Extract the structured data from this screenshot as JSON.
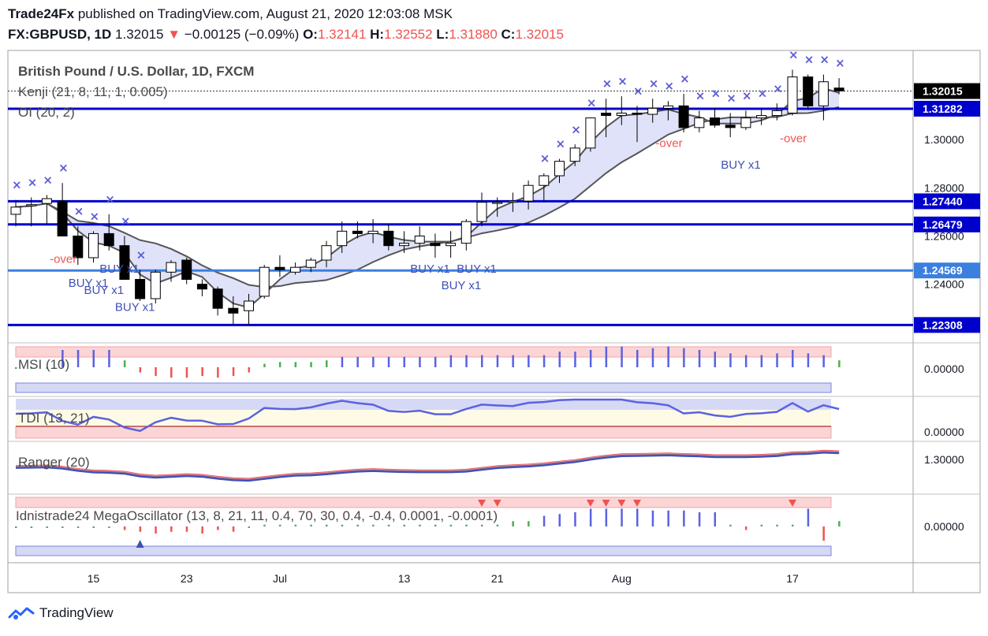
{
  "header": {
    "publisher": "Trade24Fx",
    "published_on": "published on TradingView.com, August 21, 2020 12:03:08 MSK",
    "symbol": "FX:GBPUSD, 1D",
    "last": "1.32015",
    "change": "−0.00125 (−0.09%)",
    "o_label": "O:",
    "o": "1.32141",
    "h_label": "H:",
    "h": "1.32552",
    "l_label": "L:",
    "l": "1.31880",
    "c_label": "C:",
    "c": "1.32015"
  },
  "colors": {
    "up": "#ffffff",
    "down": "#000000",
    "level_line": "#0000cc",
    "level_line_light": "#3b7fdf",
    "buy": "#3f51b5",
    "sell_cross": "#5b5bd6",
    "over": "#ef5350"
  },
  "chart_data": [
    {
      "type": "candlestick",
      "title": "British Pound / U.S. Dollar, 1D, FXCM",
      "indicators": [
        "Kenji (21, 8, 11, 1, 0.005)",
        "OI (20, 2)"
      ],
      "x_tick_labels": [
        "15",
        "23",
        "Jul",
        "13",
        "21",
        "Aug",
        "17"
      ],
      "y_tick_labels": [
        "1.24000",
        "1.26000",
        "1.28000",
        "1.30000"
      ],
      "ylim": [
        1.216,
        1.337
      ],
      "price_levels": [
        {
          "value": 1.32015,
          "label": "1.32015",
          "style": "last"
        },
        {
          "value": 1.31282,
          "label": "1.31282",
          "style": "dark"
        },
        {
          "value": 1.2744,
          "label": "1.27440",
          "style": "dark"
        },
        {
          "value": 1.26479,
          "label": "1.26479",
          "style": "dark"
        },
        {
          "value": 1.24569,
          "label": "1.24569",
          "style": "light"
        },
        {
          "value": 1.22308,
          "label": "1.22308",
          "style": "dark"
        }
      ],
      "candles": [
        [
          1.269,
          1.275,
          1.264,
          1.272
        ],
        [
          1.2725,
          1.276,
          1.264,
          1.273
        ],
        [
          1.2735,
          1.277,
          1.265,
          1.2755
        ],
        [
          1.2745,
          1.282,
          1.26,
          1.26
        ],
        [
          1.26,
          1.264,
          1.248,
          1.251
        ],
        [
          1.251,
          1.262,
          1.249,
          1.261
        ],
        [
          1.261,
          1.269,
          1.254,
          1.256
        ],
        [
          1.256,
          1.26,
          1.242,
          1.242
        ],
        [
          1.242,
          1.246,
          1.233,
          1.234
        ],
        [
          1.234,
          1.246,
          1.232,
          1.245
        ],
        [
          1.245,
          1.25,
          1.241,
          1.249
        ],
        [
          1.25,
          1.251,
          1.24,
          1.242
        ],
        [
          1.24,
          1.242,
          1.235,
          1.238
        ],
        [
          1.238,
          1.239,
          1.227,
          1.23
        ],
        [
          1.23,
          1.235,
          1.223,
          1.228
        ],
        [
          1.229,
          1.236,
          1.223,
          1.233
        ],
        [
          1.235,
          1.248,
          1.234,
          1.247
        ],
        [
          1.247,
          1.252,
          1.243,
          1.246
        ],
        [
          1.245,
          1.249,
          1.244,
          1.247
        ],
        [
          1.247,
          1.251,
          1.245,
          1.25
        ],
        [
          1.25,
          1.258,
          1.247,
          1.256
        ],
        [
          1.256,
          1.266,
          1.253,
          1.262
        ],
        [
          1.262,
          1.266,
          1.259,
          1.261
        ],
        [
          1.261,
          1.267,
          1.257,
          1.262
        ],
        [
          1.262,
          1.265,
          1.254,
          1.256
        ],
        [
          1.256,
          1.262,
          1.253,
          1.257
        ],
        [
          1.257,
          1.264,
          1.254,
          1.26
        ],
        [
          1.257,
          1.261,
          1.251,
          1.256
        ],
        [
          1.256,
          1.262,
          1.251,
          1.257
        ],
        [
          1.257,
          1.267,
          1.254,
          1.266
        ],
        [
          1.266,
          1.278,
          1.264,
          1.274
        ],
        [
          1.274,
          1.276,
          1.268,
          1.274
        ],
        [
          1.274,
          1.278,
          1.27,
          1.2745
        ],
        [
          1.2745,
          1.283,
          1.271,
          1.281
        ],
        [
          1.281,
          1.286,
          1.274,
          1.285
        ],
        [
          1.285,
          1.292,
          1.282,
          1.291
        ],
        [
          1.291,
          1.298,
          1.289,
          1.2965
        ],
        [
          1.2965,
          1.309,
          1.295,
          1.309
        ],
        [
          1.311,
          1.317,
          1.301,
          1.31
        ],
        [
          1.31,
          1.318,
          1.306,
          1.311
        ],
        [
          1.311,
          1.314,
          1.299,
          1.3105
        ],
        [
          1.3105,
          1.317,
          1.307,
          1.313
        ],
        [
          1.313,
          1.316,
          1.308,
          1.314
        ],
        [
          1.314,
          1.319,
          1.303,
          1.305
        ],
        [
          1.305,
          1.312,
          1.303,
          1.309
        ],
        [
          1.309,
          1.313,
          1.305,
          1.306
        ],
        [
          1.306,
          1.311,
          1.301,
          1.305
        ],
        [
          1.305,
          1.312,
          1.304,
          1.309
        ],
        [
          1.309,
          1.313,
          1.306,
          1.31
        ],
        [
          1.31,
          1.315,
          1.308,
          1.312
        ],
        [
          1.311,
          1.329,
          1.31,
          1.326
        ],
        [
          1.326,
          1.327,
          1.313,
          1.314
        ],
        [
          1.314,
          1.327,
          1.308,
          1.324
        ],
        [
          1.3214,
          1.3255,
          1.3188,
          1.3202
        ]
      ]
    },
    {
      "type": "bar",
      "title": "MSI (10)",
      "y_tick_labels": [
        "0.00000"
      ],
      "values": [
        0,
        0,
        0,
        1,
        1,
        1,
        1,
        0.4,
        -0.3,
        -0.5,
        -0.6,
        -0.6,
        -0.5,
        -0.6,
        -0.5,
        -0.3,
        0.2,
        0.3,
        0.3,
        0.3,
        0.4,
        0.6,
        0.6,
        0.6,
        0.6,
        0.6,
        0.6,
        0.6,
        0.7,
        0.7,
        0.7,
        0.7,
        0.7,
        0.7,
        0.7,
        0.9,
        0.9,
        1.0,
        1.2,
        1.2,
        1.0,
        1.1,
        1.2,
        1.1,
        1.0,
        0.9,
        0.8,
        0.7,
        0.7,
        0.8,
        1.0,
        0.8,
        0.7,
        0.4
      ]
    },
    {
      "type": "line",
      "title": "TDI (13, 21)",
      "y_tick_labels": [
        "0.00000"
      ]
    },
    {
      "type": "line",
      "title": "Ranger (20)",
      "y_tick_labels": [
        "1.30000"
      ]
    },
    {
      "type": "bar",
      "title": "Idnistrade24 MegaOscillator (13, 8, 21, 11, 0.4, 70, 30, 0.4, -0.4, 0.0001, -0.0001)",
      "y_tick_labels": [
        "0.00000"
      ],
      "values": [
        0,
        0,
        0,
        0,
        0,
        0,
        0,
        -0.1,
        -0.15,
        -0.2,
        -0.15,
        -0.15,
        -0.2,
        -0.1,
        -0.15,
        0,
        0.05,
        0.05,
        0.05,
        0.05,
        0.05,
        0.05,
        0.05,
        0.05,
        0.05,
        0.05,
        0.05,
        0.05,
        0.05,
        0.05,
        0.05,
        0.05,
        0.15,
        0.15,
        0.3,
        0.35,
        0.4,
        0.5,
        0.5,
        0.5,
        0.5,
        0.45,
        0.45,
        0.45,
        0.4,
        0.4,
        0.05,
        -0.1,
        0.05,
        0.05,
        0.05,
        0.5,
        -0.4,
        0.15
      ]
    }
  ],
  "signals": {
    "buy_label": "BUY x1",
    "over_label": "-over",
    "buy_pos": [
      4,
      5,
      6,
      7,
      26,
      28,
      29,
      46
    ],
    "over_pos": [
      3,
      42,
      50
    ]
  },
  "footer": {
    "brand": "TradingView"
  }
}
